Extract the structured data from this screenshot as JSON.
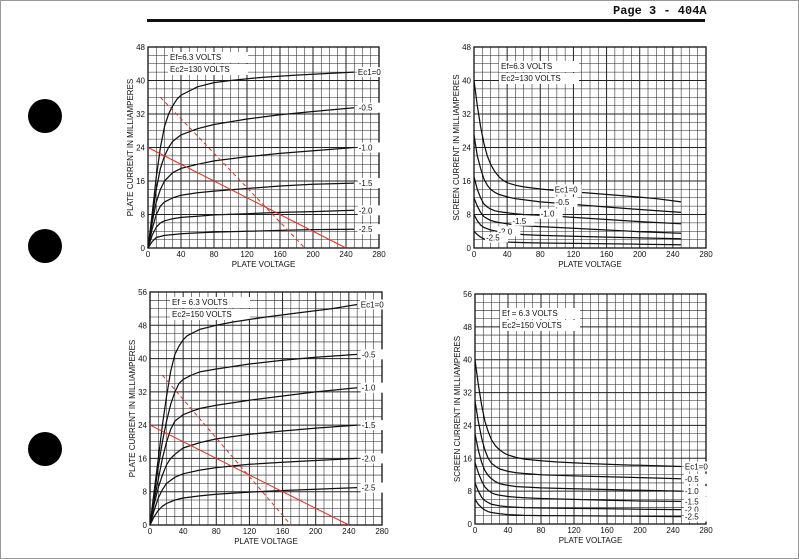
{
  "page": {
    "label": "Page 3 - 404A"
  },
  "chart_data": [
    {
      "type": "line",
      "xlabel": "PLATE VOLTAGE",
      "ylabel": "PLATE CURRENT IN MILLIAMPERES",
      "xlim": [
        0,
        280
      ],
      "ylim": [
        0,
        48
      ],
      "xticks": [
        "0",
        "40",
        "80",
        "120",
        "160",
        "200",
        "240",
        "280"
      ],
      "yticks": [
        "0",
        "8",
        "16",
        "24",
        "32",
        "40",
        "48"
      ],
      "conditions": [
        "Ef=6.3 VOLTS",
        "Ec2=130 VOLTS"
      ],
      "series": [
        {
          "name": "Ec1=0",
          "labelAt": [
            252,
            42
          ],
          "anchor": "start",
          "x": [
            0,
            5,
            10,
            15,
            20,
            25,
            30,
            35,
            40,
            50,
            60,
            80,
            100,
            140,
            180,
            220,
            250
          ],
          "y": [
            0,
            8,
            17,
            24,
            29,
            32,
            34,
            35.5,
            36.5,
            37.5,
            38.5,
            39.5,
            40,
            40.8,
            41.3,
            41.7,
            42
          ]
        },
        {
          "name": "-0.5",
          "labelAt": [
            253,
            33.5
          ],
          "anchor": "start",
          "x": [
            0,
            5,
            10,
            15,
            20,
            25,
            30,
            40,
            60,
            80,
            120,
            160,
            200,
            250
          ],
          "y": [
            0,
            7,
            14,
            19,
            22,
            24,
            25.5,
            27,
            28.5,
            29.5,
            30.8,
            31.8,
            32.6,
            33.5
          ]
        },
        {
          "name": "-1.0",
          "labelAt": [
            253,
            24
          ],
          "anchor": "start",
          "x": [
            0,
            5,
            10,
            15,
            20,
            30,
            40,
            60,
            80,
            120,
            160,
            200,
            250
          ],
          "y": [
            0,
            6,
            11,
            14,
            16,
            18,
            19,
            20,
            20.8,
            21.8,
            22.6,
            23.2,
            24
          ]
        },
        {
          "name": "-1.5",
          "labelAt": [
            253,
            15.5
          ],
          "anchor": "start",
          "x": [
            0,
            5,
            10,
            15,
            20,
            30,
            40,
            60,
            80,
            120,
            160,
            200,
            250
          ],
          "y": [
            0,
            4.5,
            8,
            10,
            11,
            12,
            12.6,
            13.2,
            13.6,
            14.2,
            14.8,
            15.2,
            15.5
          ]
        },
        {
          "name": "-2.0",
          "labelAt": [
            253,
            9
          ],
          "anchor": "start",
          "x": [
            0,
            5,
            10,
            15,
            20,
            30,
            40,
            60,
            80,
            120,
            160,
            200,
            250
          ],
          "y": [
            0,
            3,
            5,
            6,
            6.5,
            7,
            7.3,
            7.6,
            7.9,
            8.2,
            8.5,
            8.7,
            9
          ]
        },
        {
          "name": "-2.5",
          "labelAt": [
            253,
            4.5
          ],
          "anchor": "start",
          "x": [
            0,
            5,
            10,
            20,
            30,
            40,
            60,
            80,
            120,
            160,
            200,
            250
          ],
          "y": [
            0,
            1.5,
            2.5,
            3,
            3.2,
            3.4,
            3.6,
            3.8,
            4,
            4.2,
            4.4,
            4.5
          ]
        },
        {
          "name": "",
          "style": "dashed",
          "x": [
            15,
            190
          ],
          "y": [
            36,
            0
          ]
        },
        {
          "name": "",
          "style": "solid",
          "x": [
            0,
            240
          ],
          "y": [
            24,
            0
          ]
        }
      ]
    },
    {
      "type": "line",
      "xlabel": "PLATE VOLTAGE",
      "ylabel": "SCREEN CURRENT IN MILLIAMPERES",
      "xlim": [
        0,
        280
      ],
      "ylim": [
        0,
        48
      ],
      "xticks": [
        "0",
        "40",
        "80",
        "120",
        "160",
        "200",
        "240",
        "280"
      ],
      "yticks": [
        "0",
        "8",
        "16",
        "24",
        "32",
        "40",
        "48"
      ],
      "conditions": [
        "Ef=6.3 VOLTS",
        "Ec2=130 VOLTS"
      ],
      "series": [
        {
          "name": "Ec1=0",
          "labelAt": [
            95,
            14
          ],
          "anchor": "start",
          "x": [
            0,
            4,
            8,
            12,
            16,
            20,
            25,
            30,
            35,
            40,
            50,
            60,
            80,
            100,
            140,
            180,
            220,
            250
          ],
          "y": [
            40,
            34,
            29,
            25,
            22,
            20,
            18.3,
            17,
            16.2,
            15.6,
            15,
            14.6,
            14.1,
            13.7,
            13.1,
            12.5,
            11.8,
            11
          ]
        },
        {
          "name": "-0.5",
          "labelAt": [
            96,
            11
          ],
          "anchor": "start",
          "x": [
            0,
            4,
            8,
            12,
            16,
            20,
            25,
            30,
            40,
            50,
            60,
            80,
            120,
            160,
            200,
            250
          ],
          "y": [
            27,
            22,
            19,
            16.5,
            15,
            14,
            13.3,
            12.8,
            12.2,
            11.8,
            11.5,
            11,
            10.4,
            9.8,
            9.2,
            8.5
          ]
        },
        {
          "name": "-1.0",
          "labelAt": [
            78,
            8.2
          ],
          "anchor": "start",
          "x": [
            0,
            4,
            8,
            12,
            16,
            20,
            25,
            30,
            40,
            50,
            60,
            80,
            120,
            160,
            200,
            250
          ],
          "y": [
            17,
            14,
            12,
            10.5,
            9.8,
            9.3,
            8.9,
            8.7,
            8.4,
            8.2,
            8,
            7.8,
            7.3,
            6.8,
            6.3,
            5.8
          ]
        },
        {
          "name": "-1.5",
          "labelAt": [
            44,
            6.5
          ],
          "anchor": "start",
          "x": [
            0,
            4,
            8,
            12,
            16,
            20,
            25,
            30,
            40,
            50,
            60,
            80,
            120,
            160,
            200,
            250
          ],
          "y": [
            12,
            10,
            8.5,
            7.5,
            7,
            6.6,
            6.3,
            6.1,
            5.8,
            5.5,
            5.3,
            5.1,
            4.7,
            4.3,
            3.9,
            3.5
          ]
        },
        {
          "name": "-2.0",
          "labelAt": [
            27,
            4
          ],
          "anchor": "start",
          "x": [
            0,
            4,
            8,
            12,
            16,
            20,
            30,
            40,
            50,
            60,
            80,
            120,
            160,
            200,
            250
          ],
          "y": [
            8,
            6.5,
            5.5,
            4.9,
            4.6,
            4.3,
            3.9,
            3.6,
            3.4,
            3.2,
            3,
            2.8,
            2.6,
            2.4,
            2.2
          ]
        },
        {
          "name": "-2.5",
          "labelAt": [
            12,
            2.5
          ],
          "anchor": "start",
          "x": [
            0,
            4,
            8,
            12,
            16,
            20,
            30,
            40,
            60,
            80,
            120,
            160,
            200,
            250
          ],
          "y": [
            4,
            3.2,
            2.6,
            2.2,
            1.9,
            1.7,
            1.5,
            1.4,
            1.3,
            1.2,
            1.1,
            1,
            0.9,
            0.8
          ]
        }
      ]
    },
    {
      "type": "line",
      "xlabel": "PLATE VOLTAGE",
      "ylabel": "PLATE CURRENT IN MILLIAMPERES",
      "xlim": [
        0,
        280
      ],
      "ylim": [
        0,
        56
      ],
      "xticks": [
        "0",
        "40",
        "80",
        "120",
        "160",
        "200",
        "240",
        "280"
      ],
      "yticks": [
        "0",
        "8",
        "16",
        "24",
        "32",
        "40",
        "48",
        "56"
      ],
      "conditions": [
        "Ef = 6.3 VOLTS",
        "Ec2=150 VOLTS"
      ],
      "series": [
        {
          "name": "Ec1=0",
          "labelAt": [
            252,
            53
          ],
          "anchor": "start",
          "x": [
            0,
            5,
            10,
            15,
            20,
            25,
            30,
            35,
            40,
            45,
            50,
            60,
            80,
            100,
            140,
            180,
            220,
            250
          ],
          "y": [
            0,
            8,
            16,
            24,
            31,
            37,
            41,
            43,
            44.5,
            45.5,
            46,
            47,
            48,
            48.8,
            50,
            51,
            52,
            53
          ]
        },
        {
          "name": "-0.5",
          "labelAt": [
            253,
            41
          ],
          "anchor": "start",
          "x": [
            0,
            5,
            10,
            15,
            20,
            25,
            30,
            35,
            40,
            50,
            60,
            80,
            120,
            160,
            200,
            250
          ],
          "y": [
            0,
            7,
            14,
            20,
            25,
            29,
            32,
            34,
            35,
            36,
            36.8,
            37.5,
            38.7,
            39.6,
            40.3,
            41
          ]
        },
        {
          "name": "-1.0",
          "labelAt": [
            253,
            33
          ],
          "anchor": "start",
          "x": [
            0,
            5,
            10,
            15,
            20,
            25,
            30,
            40,
            50,
            60,
            80,
            120,
            160,
            200,
            250
          ],
          "y": [
            0,
            6,
            11,
            16,
            20,
            23,
            25,
            26.5,
            27.3,
            28,
            28.8,
            30,
            31,
            32,
            33
          ]
        },
        {
          "name": "-1.5",
          "labelAt": [
            253,
            24
          ],
          "anchor": "start",
          "x": [
            0,
            5,
            10,
            15,
            20,
            25,
            30,
            40,
            60,
            80,
            120,
            160,
            200,
            250
          ],
          "y": [
            0,
            5,
            9,
            12,
            14.5,
            16,
            17,
            18.5,
            19.8,
            20.7,
            21.8,
            22.6,
            23.3,
            24
          ]
        },
        {
          "name": "-2.0",
          "labelAt": [
            253,
            16
          ],
          "anchor": "start",
          "x": [
            0,
            5,
            10,
            15,
            20,
            30,
            40,
            60,
            80,
            120,
            160,
            200,
            250
          ],
          "y": [
            0,
            3.5,
            6.5,
            8.5,
            10,
            11.5,
            12.3,
            13.2,
            13.8,
            14.6,
            15.1,
            15.5,
            16
          ]
        },
        {
          "name": "-2.5",
          "labelAt": [
            253,
            9
          ],
          "anchor": "start",
          "x": [
            0,
            5,
            10,
            15,
            20,
            30,
            40,
            60,
            80,
            120,
            160,
            200,
            250
          ],
          "y": [
            0,
            2,
            3.5,
            4.5,
            5.2,
            6,
            6.5,
            7,
            7.4,
            7.9,
            8.3,
            8.6,
            9
          ]
        },
        {
          "name": "",
          "style": "dashed",
          "x": [
            15,
            170
          ],
          "y": [
            36,
            0
          ]
        },
        {
          "name": "",
          "style": "solid",
          "x": [
            0,
            240
          ],
          "y": [
            24,
            0
          ]
        }
      ]
    },
    {
      "type": "line",
      "xlabel": "PLATE VOLTAGE",
      "ylabel": "SCREEN CURRENT IN MILLIAMPERES",
      "xlim": [
        0,
        280
      ],
      "ylim": [
        0,
        56
      ],
      "xticks": [
        "0",
        "40",
        "80",
        "120",
        "160",
        "200",
        "240",
        "280"
      ],
      "yticks": [
        "0",
        "8",
        "16",
        "24",
        "32",
        "40",
        "48",
        "56"
      ],
      "conditions": [
        "Ef = 6.3 VOLTS",
        "Ec2=150 VOLTS"
      ],
      "series": [
        {
          "name": "Ec1=0",
          "labelAt": [
            252,
            14
          ],
          "anchor": "start",
          "x": [
            0,
            4,
            8,
            12,
            16,
            20,
            25,
            30,
            35,
            40,
            50,
            60,
            80,
            100,
            140,
            180,
            220,
            250
          ],
          "y": [
            40,
            34,
            29,
            25,
            22.5,
            20.5,
            19,
            18,
            17.3,
            16.8,
            16.2,
            15.8,
            15.4,
            15.1,
            14.7,
            14.4,
            14.2,
            14
          ]
        },
        {
          "name": "-0.5",
          "labelAt": [
            252,
            11
          ],
          "anchor": "start",
          "x": [
            0,
            4,
            8,
            12,
            16,
            20,
            25,
            30,
            40,
            50,
            60,
            80,
            120,
            160,
            200,
            250
          ],
          "y": [
            30,
            25,
            21,
            18,
            16,
            14.8,
            14,
            13.4,
            12.8,
            12.5,
            12.3,
            12,
            11.7,
            11.5,
            11.3,
            11
          ]
        },
        {
          "name": "-1.0",
          "labelAt": [
            252,
            8
          ],
          "anchor": "start",
          "x": [
            0,
            4,
            8,
            12,
            16,
            20,
            25,
            30,
            40,
            50,
            60,
            80,
            120,
            160,
            200,
            250
          ],
          "y": [
            22,
            18,
            15,
            13,
            11.8,
            11,
            10.3,
            9.8,
            9.4,
            9.1,
            9,
            8.8,
            8.6,
            8.4,
            8.2,
            8
          ]
        },
        {
          "name": "-1.5",
          "labelAt": [
            252,
            5.5
          ],
          "anchor": "start",
          "x": [
            0,
            4,
            8,
            12,
            16,
            20,
            25,
            30,
            40,
            50,
            60,
            80,
            120,
            160,
            200,
            250
          ],
          "y": [
            15,
            12.5,
            10.5,
            9,
            8.2,
            7.6,
            7.2,
            7,
            6.7,
            6.5,
            6.4,
            6.2,
            6,
            5.8,
            5.6,
            5.5
          ]
        },
        {
          "name": "-2.0",
          "labelAt": [
            252,
            3.5
          ],
          "anchor": "start",
          "x": [
            0,
            4,
            8,
            12,
            16,
            20,
            30,
            40,
            50,
            60,
            80,
            120,
            160,
            200,
            250
          ],
          "y": [
            10,
            8,
            6.5,
            5.7,
            5.2,
            4.8,
            4.4,
            4.2,
            4.1,
            4,
            3.9,
            3.8,
            3.7,
            3.6,
            3.5
          ]
        },
        {
          "name": "-2.5",
          "labelAt": [
            252,
            1.8
          ],
          "anchor": "start",
          "x": [
            0,
            4,
            8,
            12,
            16,
            20,
            30,
            40,
            50,
            60,
            80,
            120,
            160,
            200,
            250
          ],
          "y": [
            6,
            4.8,
            4,
            3.4,
            3,
            2.8,
            2.5,
            2.3,
            2.2,
            2.1,
            2.05,
            2,
            1.95,
            1.9,
            1.8
          ]
        }
      ]
    }
  ]
}
